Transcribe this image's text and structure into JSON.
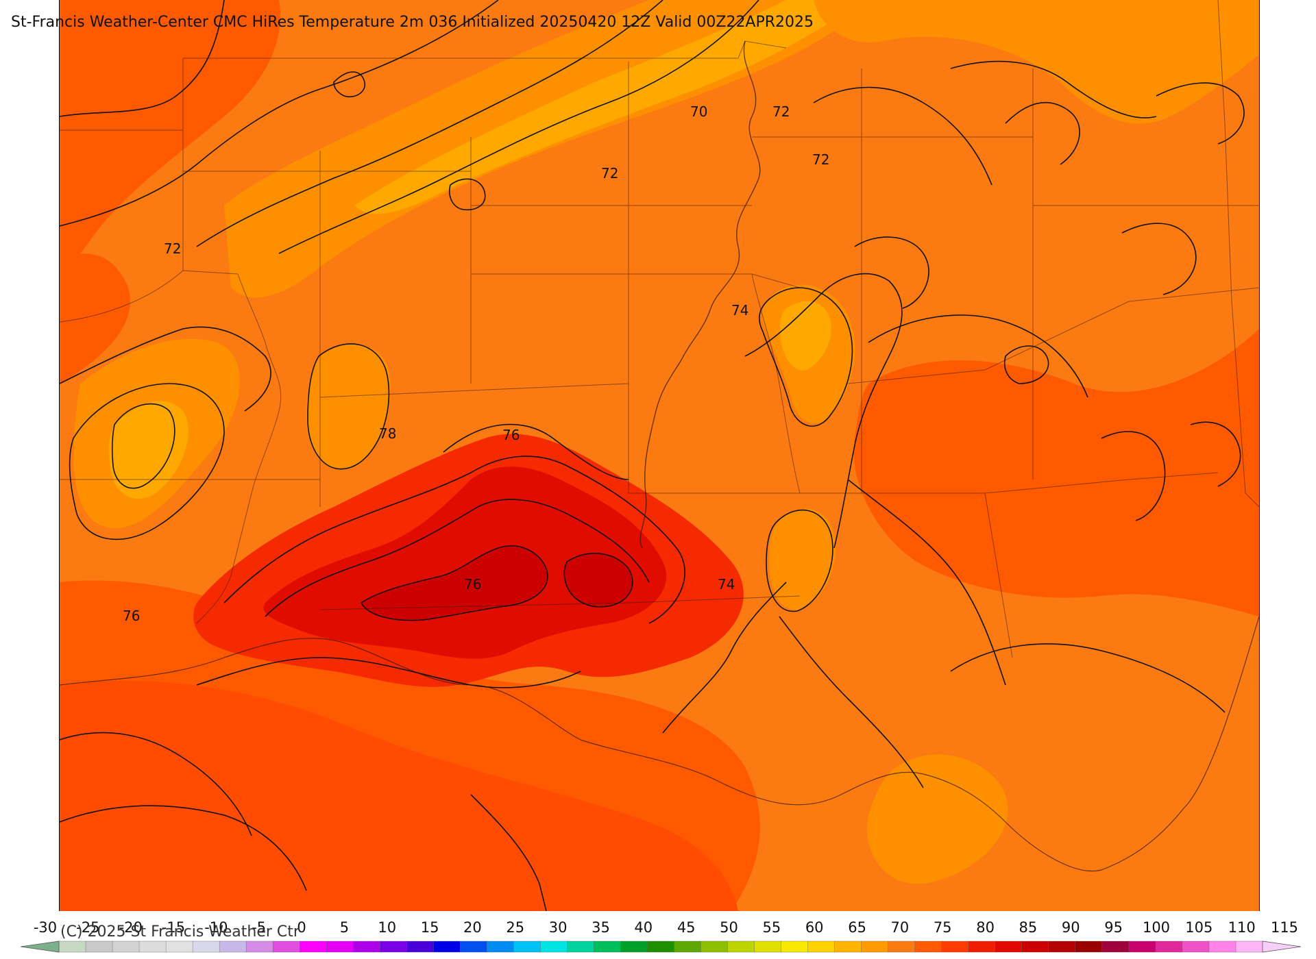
{
  "title": "St-Francis Weather-Center CMC HiRes Temperature 2m  036 Initialized 20250420 12Z Valid 00Z22APR2025",
  "copyright": "(C) 2025 St Francis Weather Ctr",
  "contour_labels": [
    "72",
    "70",
    "72",
    "72",
    "72",
    "74",
    "78",
    "76",
    "76",
    "74",
    "76"
  ],
  "colorbar": {
    "ticks": [
      "-30",
      "-25",
      "-20",
      "-15",
      "-10",
      "-5",
      "0",
      "5",
      "10",
      "15",
      "20",
      "25",
      "30",
      "35",
      "40",
      "45",
      "50",
      "55",
      "60",
      "65",
      "70",
      "75",
      "80",
      "85",
      "90",
      "95",
      "100",
      "105",
      "110",
      "115"
    ],
    "colors": [
      "#c7d9c2",
      "#c9c9c9",
      "#d2d2d2",
      "#dcdcdc",
      "#e1e1e1",
      "#d8d8ec",
      "#c8b8ea",
      "#d68ce6",
      "#e04fe0",
      "#ff00ff",
      "#e400f6",
      "#b000ea",
      "#7a00e6",
      "#4a00d8",
      "#0000e8",
      "#0050f0",
      "#008cf2",
      "#00c0f4",
      "#00e4e4",
      "#00d2a0",
      "#00be5a",
      "#00a028",
      "#1e9000",
      "#5aa800",
      "#8cc000",
      "#bcd400",
      "#e0e000",
      "#f8e800",
      "#ffd200",
      "#ffb400",
      "#ff9a00",
      "#fc7a12",
      "#ff5a00",
      "#ff3c00",
      "#f01e00",
      "#e00800",
      "#cc0000",
      "#b40000",
      "#9a0000",
      "#a0003c",
      "#c8006e",
      "#e0289a",
      "#f050c8",
      "#ff82e8",
      "#ffb4f4"
    ],
    "left_end_color": "#7cb08a",
    "right_end_color": "#f6d0f8"
  },
  "map_colors": {
    "base": "#fc7a12",
    "orange_light": "#fe9000",
    "orange_pale": "#ffa800",
    "red_orange": "#ff5a00",
    "red": "#f62a00",
    "deep_red": "#e00c00",
    "darkest_red": "#cc0000",
    "gulf": "#ff4c00"
  }
}
